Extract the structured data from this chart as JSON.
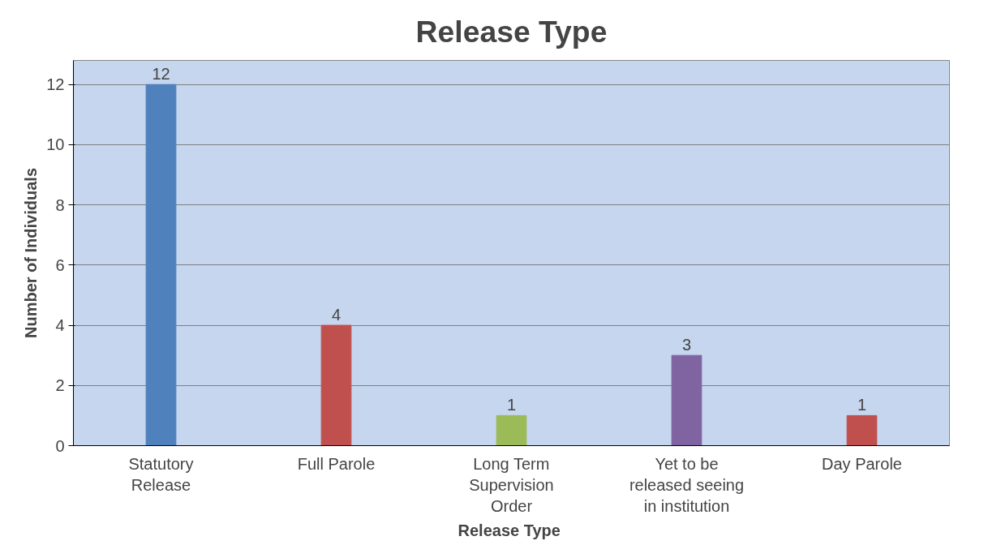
{
  "chart_data": {
    "type": "bar",
    "title": "Release Type",
    "xlabel": "Release  Type",
    "ylabel": "Number of Individuals",
    "categories": [
      "Statutory Release",
      "Full Parole",
      "Long Term Supervision Order",
      "Yet to be released seeing in institution",
      "Day Parole"
    ],
    "values": [
      12,
      4,
      1,
      3,
      1
    ],
    "colors": [
      "#4f81bd",
      "#c0504d",
      "#9bbb59",
      "#8064a2",
      "#c0504d"
    ],
    "ylim": [
      0,
      12.8
    ],
    "yticks": [
      0,
      2,
      4,
      6,
      8,
      10,
      12
    ],
    "grid": "y",
    "data_labels": true
  }
}
